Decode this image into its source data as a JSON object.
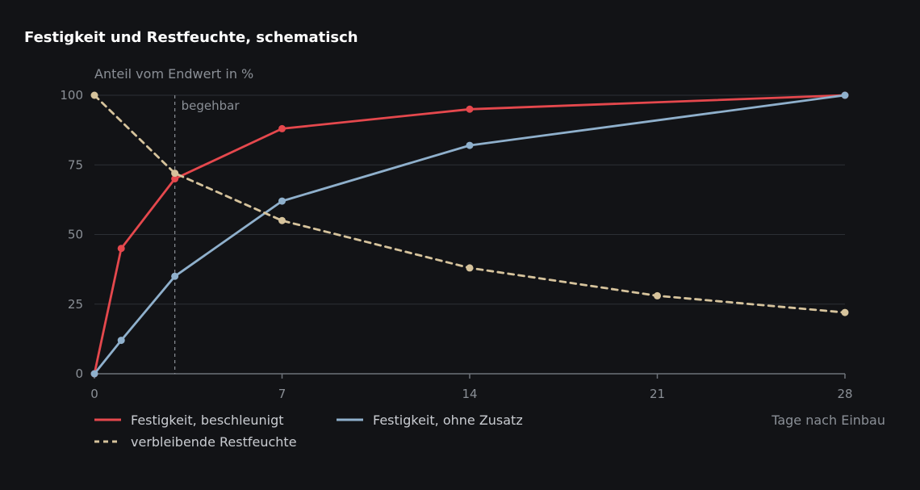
{
  "chart_data": {
    "type": "line",
    "title": "Festigkeit und Restfeuchte, schematisch",
    "ylabel": "Anteil vom Endwert in %",
    "xlabel": "Tage nach Einbau",
    "xlim": [
      0,
      28
    ],
    "ylim": [
      0,
      100
    ],
    "x_ticks": [
      "0",
      "7",
      "14",
      "21",
      "28"
    ],
    "y_ticks": [
      "0",
      "25",
      "50",
      "75",
      "100"
    ],
    "grid": true,
    "legend_position": "bottom-left",
    "annotation": {
      "label": "begehbar",
      "x": 3
    },
    "series": [
      {
        "name": "Festigkeit, beschleunigt",
        "color": "#e5484d",
        "dashed": false,
        "x": [
          0,
          1,
          3,
          7,
          14,
          28
        ],
        "y": [
          0,
          45,
          70,
          88,
          95,
          100
        ]
      },
      {
        "name": "Festigkeit, ohne Zusatz",
        "color": "#8fb0cc",
        "dashed": false,
        "x": [
          0,
          1,
          3,
          7,
          14,
          28
        ],
        "y": [
          0,
          12,
          35,
          62,
          82,
          100
        ]
      },
      {
        "name": "verbleibende Restfeuchte",
        "color": "#d6c39c",
        "dashed": true,
        "x": [
          0,
          3,
          7,
          14,
          21,
          28
        ],
        "y": [
          100,
          72,
          55,
          38,
          28,
          22
        ]
      }
    ]
  }
}
